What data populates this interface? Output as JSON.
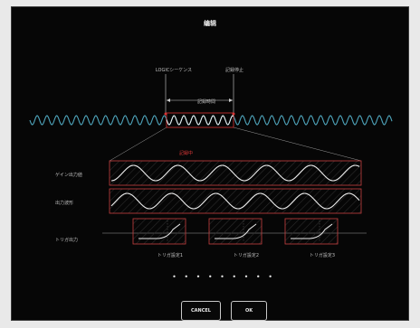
{
  "title": "编辑",
  "markers": {
    "start_label": "LOGICシーケンス",
    "end_label": "記録停止",
    "range_label": "記録時間",
    "selected_label": "記録中"
  },
  "rows": [
    {
      "label": "ゲイン出力値"
    },
    {
      "label": "出力波形"
    },
    {
      "label": "トリガ出力"
    }
  ],
  "trigger_boxes": [
    {
      "label": "トリガ設定1"
    },
    {
      "label": "トリガ設定2"
    },
    {
      "label": "トリガ設定3"
    }
  ],
  "pagination": "• • • • • • • • •",
  "buttons": {
    "cancel": "CANCEL",
    "ok": "OK"
  },
  "colors": {
    "background": "#060606",
    "wave": "#4fa6bd",
    "accent": "#d93434",
    "panel_wave": "#e8e8e8"
  }
}
